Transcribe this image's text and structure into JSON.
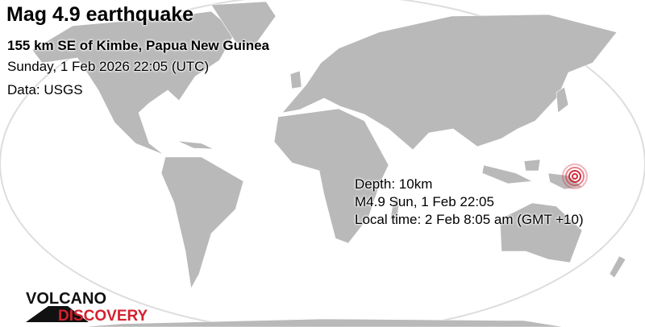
{
  "title": "Mag 4.9 earthquake",
  "location": "155 km SE of Kimbe, Papua New Guinea",
  "datetime": "Sunday,  1 Feb 2026 22:05 (UTC)",
  "source": "Data: USGS",
  "details": {
    "depth": "Depth: 10km",
    "summary": "M4.9 Sun,  1 Feb 22:05",
    "local_time": "Local time: 2 Feb 8:05 am (GMT +10)"
  },
  "logo": {
    "line1": "VOLCANO",
    "line2": "DISCOVERY"
  },
  "marker": {
    "icon": "epicenter-concentric-circles-icon",
    "color": "#d42a3a"
  },
  "colors": {
    "land": "#b9b9b9",
    "ocean": "#ffffff",
    "logo_red": "#d4202e"
  }
}
